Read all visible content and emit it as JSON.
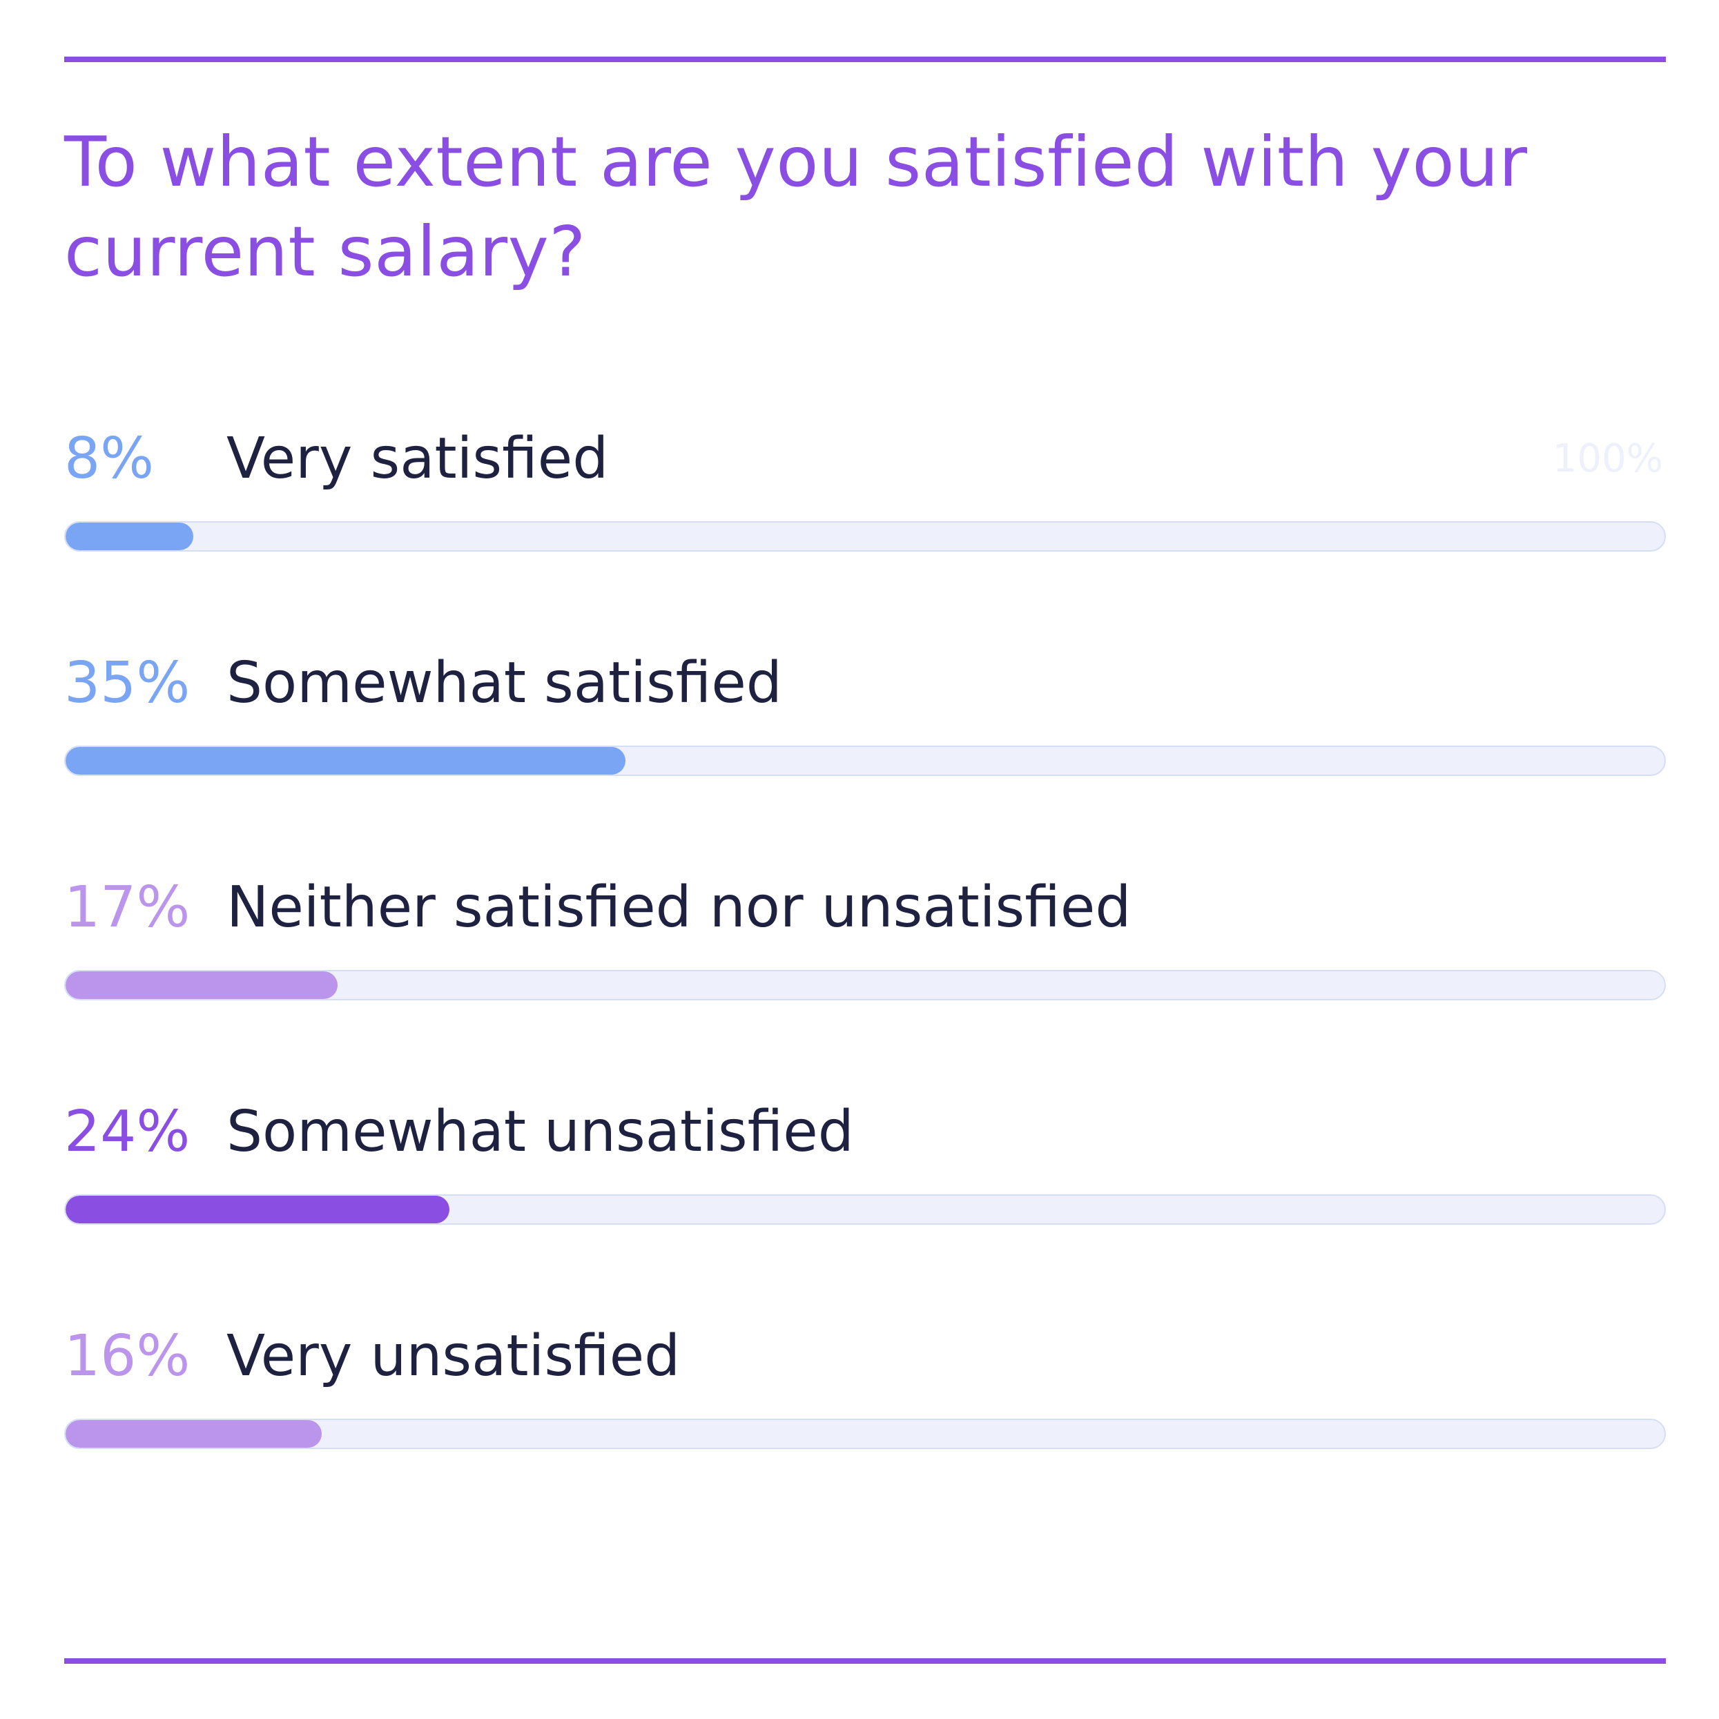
{
  "chart_data": {
    "type": "bar",
    "title": "To what extent are you satisfied with your current salary?",
    "axis_max_label": "100%",
    "xlim": [
      0,
      100
    ],
    "categories": [
      "Very satisfied",
      "Somewhat satisfied",
      "Neither satisfied nor unsatisfied",
      "Somewhat unsatisfied",
      "Very unsatisfied"
    ],
    "values": [
      8,
      35,
      17,
      24,
      16
    ],
    "value_labels": [
      "8%",
      "35%",
      "17%",
      "24%",
      "16%"
    ],
    "colors": [
      "#7aa5f5",
      "#7aa5f5",
      "#bb95ec",
      "#8a4ee3",
      "#bb95ec"
    ],
    "grid": false,
    "orientation": "horizontal"
  },
  "theme": {
    "accent": "#8a4ee3",
    "track": "#eef1fb",
    "text": "#1e2140"
  }
}
